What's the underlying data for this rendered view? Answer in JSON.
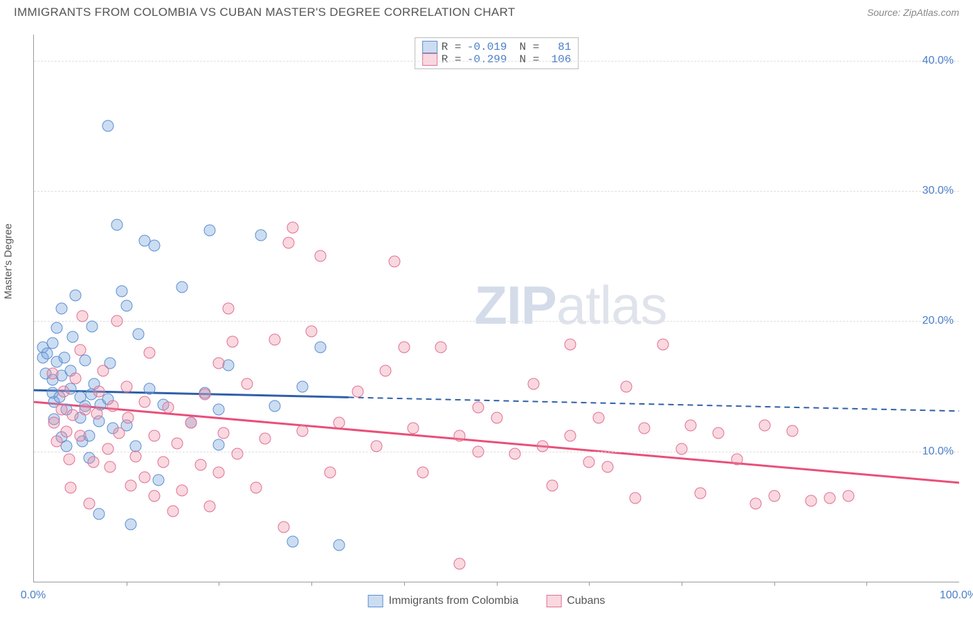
{
  "header": {
    "title": "IMMIGRANTS FROM COLOMBIA VS CUBAN MASTER'S DEGREE CORRELATION CHART",
    "source": "Source: ZipAtlas.com"
  },
  "watermark": "ZIPatlas",
  "axes": {
    "y_label": "Master's Degree",
    "x_min": 0,
    "x_max": 100,
    "y_min": 0,
    "y_max": 42,
    "y_ticks": [
      {
        "v": 10,
        "label": "10.0%"
      },
      {
        "v": 20,
        "label": "20.0%"
      },
      {
        "v": 30,
        "label": "30.0%"
      },
      {
        "v": 40,
        "label": "40.0%"
      }
    ],
    "x_ticks_major": [
      0,
      100
    ],
    "x_tick_labels": [
      {
        "v": 0,
        "label": "0.0%"
      },
      {
        "v": 100,
        "label": "100.0%"
      }
    ],
    "x_minor_step": 10,
    "grid_color": "#dddddd",
    "label_color": "#4a7ec9",
    "label_fontsize": 16
  },
  "series": [
    {
      "name": "Immigrants from Colombia",
      "fill": "rgba(120,165,220,0.38)",
      "stroke": "#5a8fd0",
      "trend": {
        "x1": 0,
        "y1": 14.7,
        "x2": 100,
        "y2": 13.1,
        "solid_until_x": 34
      },
      "trend_color": "#2f5fa8",
      "R": "-0.019",
      "N": "81",
      "points": [
        [
          1,
          18
        ],
        [
          1,
          17.2
        ],
        [
          1.3,
          16
        ],
        [
          1.4,
          17.5
        ],
        [
          2,
          18.3
        ],
        [
          2,
          14.5
        ],
        [
          2,
          15.5
        ],
        [
          2.2,
          12.5
        ],
        [
          2.2,
          13.8
        ],
        [
          2.5,
          16.9
        ],
        [
          2.5,
          19.5
        ],
        [
          2.8,
          14.2
        ],
        [
          3,
          15.8
        ],
        [
          3,
          21
        ],
        [
          3,
          11.1
        ],
        [
          3.3,
          17.2
        ],
        [
          3.5,
          13.2
        ],
        [
          3.5,
          10.4
        ],
        [
          4,
          16.2
        ],
        [
          4,
          14.8
        ],
        [
          4.2,
          18.8
        ],
        [
          4.5,
          22
        ],
        [
          5,
          14.2
        ],
        [
          5,
          12.6
        ],
        [
          5.2,
          10.8
        ],
        [
          5.5,
          17
        ],
        [
          5.5,
          13.5
        ],
        [
          6,
          11.2
        ],
        [
          6,
          9.5
        ],
        [
          6.2,
          14.4
        ],
        [
          6.3,
          19.6
        ],
        [
          6.5,
          15.2
        ],
        [
          7,
          12.3
        ],
        [
          7,
          5.2
        ],
        [
          7.2,
          13.6
        ],
        [
          8,
          35
        ],
        [
          8,
          14
        ],
        [
          8.2,
          16.8
        ],
        [
          8.5,
          11.8
        ],
        [
          9,
          27.4
        ],
        [
          9.5,
          22.3
        ],
        [
          10,
          12
        ],
        [
          10,
          21.2
        ],
        [
          10.5,
          4.4
        ],
        [
          11,
          10.4
        ],
        [
          11.3,
          19
        ],
        [
          12,
          26.2
        ],
        [
          12.5,
          14.8
        ],
        [
          13,
          25.8
        ],
        [
          13.5,
          7.8
        ],
        [
          14,
          13.6
        ],
        [
          16,
          22.6
        ],
        [
          17,
          12.2
        ],
        [
          18.5,
          14.5
        ],
        [
          19,
          27
        ],
        [
          20,
          10.5
        ],
        [
          20,
          13.2
        ],
        [
          21,
          16.6
        ],
        [
          24.5,
          26.6
        ],
        [
          26,
          13.5
        ],
        [
          28,
          3.1
        ],
        [
          29,
          15
        ],
        [
          31,
          18
        ],
        [
          33,
          2.8
        ]
      ]
    },
    {
      "name": "Cubans",
      "fill": "rgba(238,140,165,0.34)",
      "stroke": "#e16f92",
      "trend": {
        "x1": 0,
        "y1": 13.8,
        "x2": 100,
        "y2": 7.6,
        "solid_until_x": 100
      },
      "trend_color": "#e94f7a",
      "R": "-0.299",
      "N": "106",
      "points": [
        [
          2,
          16
        ],
        [
          2.2,
          12.2
        ],
        [
          2.5,
          10.8
        ],
        [
          3,
          13.2
        ],
        [
          3.2,
          14.6
        ],
        [
          3.5,
          11.5
        ],
        [
          3.8,
          9.4
        ],
        [
          4,
          7.2
        ],
        [
          4.2,
          12.8
        ],
        [
          4.5,
          15.6
        ],
        [
          5,
          17.8
        ],
        [
          5.2,
          20.4
        ],
        [
          5,
          11.2
        ],
        [
          5.5,
          13.2
        ],
        [
          6,
          6
        ],
        [
          6.4,
          9.2
        ],
        [
          6.8,
          12.9
        ],
        [
          7,
          14.6
        ],
        [
          7.5,
          16.2
        ],
        [
          8,
          10.2
        ],
        [
          8.2,
          8.8
        ],
        [
          8.5,
          13.5
        ],
        [
          9,
          20
        ],
        [
          9.2,
          11.4
        ],
        [
          10,
          15
        ],
        [
          10.2,
          12.6
        ],
        [
          10.5,
          7.4
        ],
        [
          11,
          9.6
        ],
        [
          12,
          13.8
        ],
        [
          12,
          8
        ],
        [
          12.5,
          17.6
        ],
        [
          13,
          11.2
        ],
        [
          13,
          6.6
        ],
        [
          14,
          9.2
        ],
        [
          14.5,
          13.4
        ],
        [
          15,
          5.4
        ],
        [
          15.5,
          10.6
        ],
        [
          16,
          7
        ],
        [
          17,
          12.2
        ],
        [
          18,
          9
        ],
        [
          18.5,
          14.4
        ],
        [
          19,
          5.8
        ],
        [
          20,
          16.8
        ],
        [
          20,
          8.4
        ],
        [
          20.5,
          11.4
        ],
        [
          21,
          21
        ],
        [
          21.5,
          18.4
        ],
        [
          22,
          9.8
        ],
        [
          23,
          15.2
        ],
        [
          24,
          7.2
        ],
        [
          25,
          11
        ],
        [
          26,
          18.6
        ],
        [
          27,
          4.2
        ],
        [
          27.5,
          26
        ],
        [
          28,
          27.2
        ],
        [
          29,
          11.6
        ],
        [
          30,
          19.2
        ],
        [
          31,
          25
        ],
        [
          32,
          8.4
        ],
        [
          33,
          12.2
        ],
        [
          35,
          14.6
        ],
        [
          37,
          10.4
        ],
        [
          38,
          16.2
        ],
        [
          39,
          24.6
        ],
        [
          40,
          18
        ],
        [
          41,
          11.8
        ],
        [
          42,
          8.4
        ],
        [
          44,
          18
        ],
        [
          46,
          1.4
        ],
        [
          46,
          11.2
        ],
        [
          48,
          13.4
        ],
        [
          48,
          10
        ],
        [
          50,
          12.6
        ],
        [
          52,
          9.8
        ],
        [
          54,
          15.2
        ],
        [
          55,
          10.4
        ],
        [
          56,
          7.4
        ],
        [
          58,
          11.2
        ],
        [
          58,
          18.2
        ],
        [
          60,
          9.2
        ],
        [
          61,
          12.6
        ],
        [
          62,
          8.8
        ],
        [
          64,
          15
        ],
        [
          65,
          6.4
        ],
        [
          66,
          11.8
        ],
        [
          68,
          18.2
        ],
        [
          70,
          10.2
        ],
        [
          71,
          12
        ],
        [
          72,
          6.8
        ],
        [
          74,
          11.4
        ],
        [
          76,
          9.4
        ],
        [
          78,
          6
        ],
        [
          79,
          12
        ],
        [
          80,
          6.6
        ],
        [
          82,
          11.6
        ],
        [
          84,
          6.2
        ],
        [
          86,
          6.4
        ],
        [
          88,
          6.6
        ]
      ]
    }
  ],
  "legend_top": {
    "R_label": "R =",
    "N_label": "N ="
  },
  "legend_bottom": {
    "items": [
      "Immigrants from Colombia",
      "Cubans"
    ]
  }
}
